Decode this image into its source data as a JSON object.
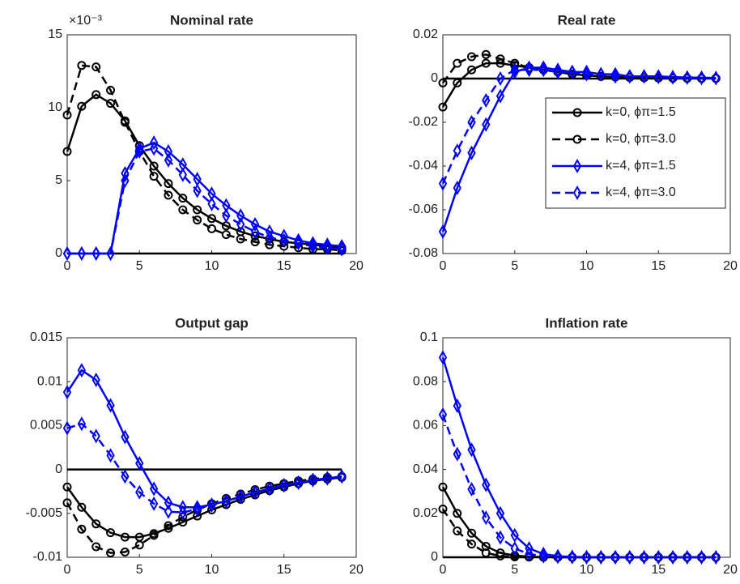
{
  "chart_data": [
    {
      "type": "line",
      "title": "Nominal rate",
      "annotation": "×10⁻³",
      "x": [
        0,
        1,
        2,
        3,
        4,
        5,
        6,
        7,
        8,
        9,
        10,
        11,
        12,
        13,
        14,
        15,
        16,
        17,
        18,
        19
      ],
      "xlim": [
        0,
        20
      ],
      "xticks": [
        0,
        5,
        10,
        15,
        20
      ],
      "ylim": [
        0,
        15
      ],
      "yticks": [
        0,
        5,
        10,
        15
      ],
      "hline": 0,
      "series": [
        {
          "color": "#000000",
          "marker": "circle",
          "dashed": false,
          "values": [
            7.0,
            10.1,
            10.9,
            10.3,
            9.1,
            7.4,
            6.0,
            4.8,
            3.8,
            3.0,
            2.4,
            1.9,
            1.5,
            1.2,
            1.0,
            0.8,
            0.7,
            0.6,
            0.5,
            0.4
          ]
        },
        {
          "color": "#000000",
          "marker": "circle",
          "dashed": true,
          "values": [
            9.5,
            12.9,
            12.8,
            11.2,
            9.0,
            7.0,
            5.3,
            4.0,
            3.0,
            2.3,
            1.7,
            1.3,
            1.0,
            0.8,
            0.6,
            0.5,
            0.4,
            0.3,
            0.3,
            0.2
          ]
        },
        {
          "color": "#0000ff",
          "marker": "diamond",
          "dashed": false,
          "values": [
            0,
            0,
            0,
            0,
            5.5,
            7.2,
            7.6,
            7.0,
            6.1,
            5.1,
            4.1,
            3.3,
            2.6,
            2.0,
            1.5,
            1.2,
            0.9,
            0.7,
            0.6,
            0.5
          ]
        },
        {
          "color": "#0000ff",
          "marker": "diamond",
          "dashed": true,
          "values": [
            0,
            0,
            0,
            0,
            5.0,
            7.0,
            7.2,
            6.4,
            5.4,
            4.3,
            3.4,
            2.6,
            2.0,
            1.5,
            1.1,
            0.9,
            0.7,
            0.5,
            0.4,
            0.3
          ]
        }
      ]
    },
    {
      "type": "line",
      "title": "Real rate",
      "legend": "east",
      "x": [
        0,
        1,
        2,
        3,
        4,
        5,
        6,
        7,
        8,
        9,
        10,
        11,
        12,
        13,
        14,
        15,
        16,
        17,
        18,
        19
      ],
      "xlim": [
        0,
        20
      ],
      "xticks": [
        0,
        5,
        10,
        15,
        20
      ],
      "ylim": [
        -0.08,
        0.02
      ],
      "yticks": [
        -0.08,
        -0.06,
        -0.04,
        -0.02,
        0,
        0.02
      ],
      "hline": 0,
      "series": [
        {
          "name": "k=0, ϕπ=1.5",
          "color": "#000000",
          "marker": "circle",
          "dashed": false,
          "values": [
            -0.013,
            -0.002,
            0.004,
            0.007,
            0.007,
            0.006,
            0.005,
            0.004,
            0.003,
            0.002,
            0.0015,
            0.001,
            0.0008,
            0.0006,
            0.0004,
            0.0003,
            0.0002,
            0.0002,
            0.0001,
            0.0001
          ]
        },
        {
          "name": "k=0, ϕπ=3.0",
          "color": "#000000",
          "marker": "circle",
          "dashed": true,
          "values": [
            -0.002,
            0.007,
            0.01,
            0.011,
            0.009,
            0.007,
            0.005,
            0.004,
            0.003,
            0.002,
            0.0015,
            0.001,
            0.0007,
            0.0005,
            0.0004,
            0.0003,
            0.0002,
            0.0001,
            0.0001,
            0.0001
          ]
        },
        {
          "name": "k=4, ϕπ=1.5",
          "color": "#0000ff",
          "marker": "diamond",
          "dashed": false,
          "values": [
            -0.07,
            -0.05,
            -0.034,
            -0.021,
            -0.008,
            0.003,
            0.005,
            0.005,
            0.004,
            0.003,
            0.003,
            0.002,
            0.002,
            0.001,
            0.001,
            0.001,
            0.0007,
            0.0005,
            0.0004,
            0.0003
          ]
        },
        {
          "name": "k=4, ϕπ=3.0",
          "color": "#0000ff",
          "marker": "diamond",
          "dashed": true,
          "values": [
            -0.048,
            -0.033,
            -0.02,
            -0.01,
            0.0,
            0.004,
            0.004,
            0.004,
            0.003,
            0.003,
            0.002,
            0.002,
            0.001,
            0.001,
            0.001,
            0.0007,
            0.0005,
            0.0004,
            0.0003,
            0.0002
          ]
        }
      ]
    },
    {
      "type": "line",
      "title": "Output gap",
      "x": [
        0,
        1,
        2,
        3,
        4,
        5,
        6,
        7,
        8,
        9,
        10,
        11,
        12,
        13,
        14,
        15,
        16,
        17,
        18,
        19
      ],
      "xlim": [
        0,
        20
      ],
      "xticks": [
        0,
        5,
        10,
        15,
        20
      ],
      "ylim": [
        -0.01,
        0.015
      ],
      "yticks": [
        -0.01,
        -0.005,
        0,
        0.005,
        0.01,
        0.015
      ],
      "hline": 0,
      "series": [
        {
          "color": "#000000",
          "marker": "circle",
          "dashed": false,
          "values": [
            -0.002,
            -0.0043,
            -0.0062,
            -0.0072,
            -0.0077,
            -0.0077,
            -0.0073,
            -0.0067,
            -0.006,
            -0.0053,
            -0.0046,
            -0.004,
            -0.0034,
            -0.0029,
            -0.0024,
            -0.002,
            -0.0016,
            -0.0013,
            -0.0011,
            -0.0009
          ]
        },
        {
          "color": "#000000",
          "marker": "circle",
          "dashed": true,
          "values": [
            -0.0038,
            -0.0068,
            -0.0088,
            -0.0095,
            -0.0094,
            -0.0086,
            -0.0075,
            -0.0064,
            -0.0054,
            -0.0046,
            -0.0039,
            -0.0033,
            -0.0028,
            -0.0023,
            -0.0019,
            -0.0016,
            -0.0013,
            -0.0011,
            -0.0009,
            -0.0008
          ]
        },
        {
          "color": "#0000ff",
          "marker": "diamond",
          "dashed": false,
          "values": [
            0.0088,
            0.0113,
            0.0102,
            0.0073,
            0.0037,
            0.0007,
            -0.0022,
            -0.0038,
            -0.0043,
            -0.0043,
            -0.004,
            -0.0036,
            -0.0031,
            -0.0026,
            -0.0022,
            -0.0018,
            -0.0015,
            -0.0012,
            -0.001,
            -0.0008
          ]
        },
        {
          "color": "#0000ff",
          "marker": "diamond",
          "dashed": true,
          "values": [
            0.0047,
            0.0052,
            0.0038,
            0.0016,
            -0.0008,
            -0.0026,
            -0.0039,
            -0.0048,
            -0.0049,
            -0.0045,
            -0.0041,
            -0.0036,
            -0.0031,
            -0.0026,
            -0.0022,
            -0.0018,
            -0.0015,
            -0.0012,
            -0.001,
            -0.0008
          ]
        }
      ]
    },
    {
      "type": "line",
      "title": "Inflation rate",
      "x": [
        0,
        1,
        2,
        3,
        4,
        5,
        6,
        7,
        8,
        9,
        10,
        11,
        12,
        13,
        14,
        15,
        16,
        17,
        18,
        19
      ],
      "xlim": [
        0,
        20
      ],
      "xticks": [
        0,
        5,
        10,
        15,
        20
      ],
      "ylim": [
        0,
        0.1
      ],
      "yticks": [
        0,
        0.02,
        0.04,
        0.06,
        0.08,
        0.1
      ],
      "hline": 0,
      "series": [
        {
          "color": "#000000",
          "marker": "circle",
          "dashed": false,
          "values": [
            0.032,
            0.02,
            0.011,
            0.005,
            0.002,
            0.0008,
            0.0003,
            0.0001,
            0,
            0,
            0,
            0,
            0,
            0,
            0,
            0,
            0,
            0,
            0,
            0
          ]
        },
        {
          "color": "#000000",
          "marker": "circle",
          "dashed": true,
          "values": [
            0.022,
            0.012,
            0.006,
            0.002,
            0.0006,
            0.0002,
            0.0001,
            0,
            0,
            0,
            0,
            0,
            0,
            0,
            0,
            0,
            0,
            0,
            0,
            0
          ]
        },
        {
          "color": "#0000ff",
          "marker": "diamond",
          "dashed": false,
          "values": [
            0.091,
            0.069,
            0.049,
            0.033,
            0.02,
            0.01,
            0.004,
            0.0015,
            0.0005,
            0.0002,
            0.0001,
            0,
            0,
            0,
            0,
            0,
            0,
            0,
            0,
            0
          ]
        },
        {
          "color": "#0000ff",
          "marker": "diamond",
          "dashed": true,
          "values": [
            0.065,
            0.047,
            0.031,
            0.018,
            0.009,
            0.004,
            0.0015,
            0.0005,
            0.0002,
            0.0001,
            0,
            0,
            0,
            0,
            0,
            0,
            0,
            0,
            0,
            0
          ]
        }
      ]
    }
  ]
}
